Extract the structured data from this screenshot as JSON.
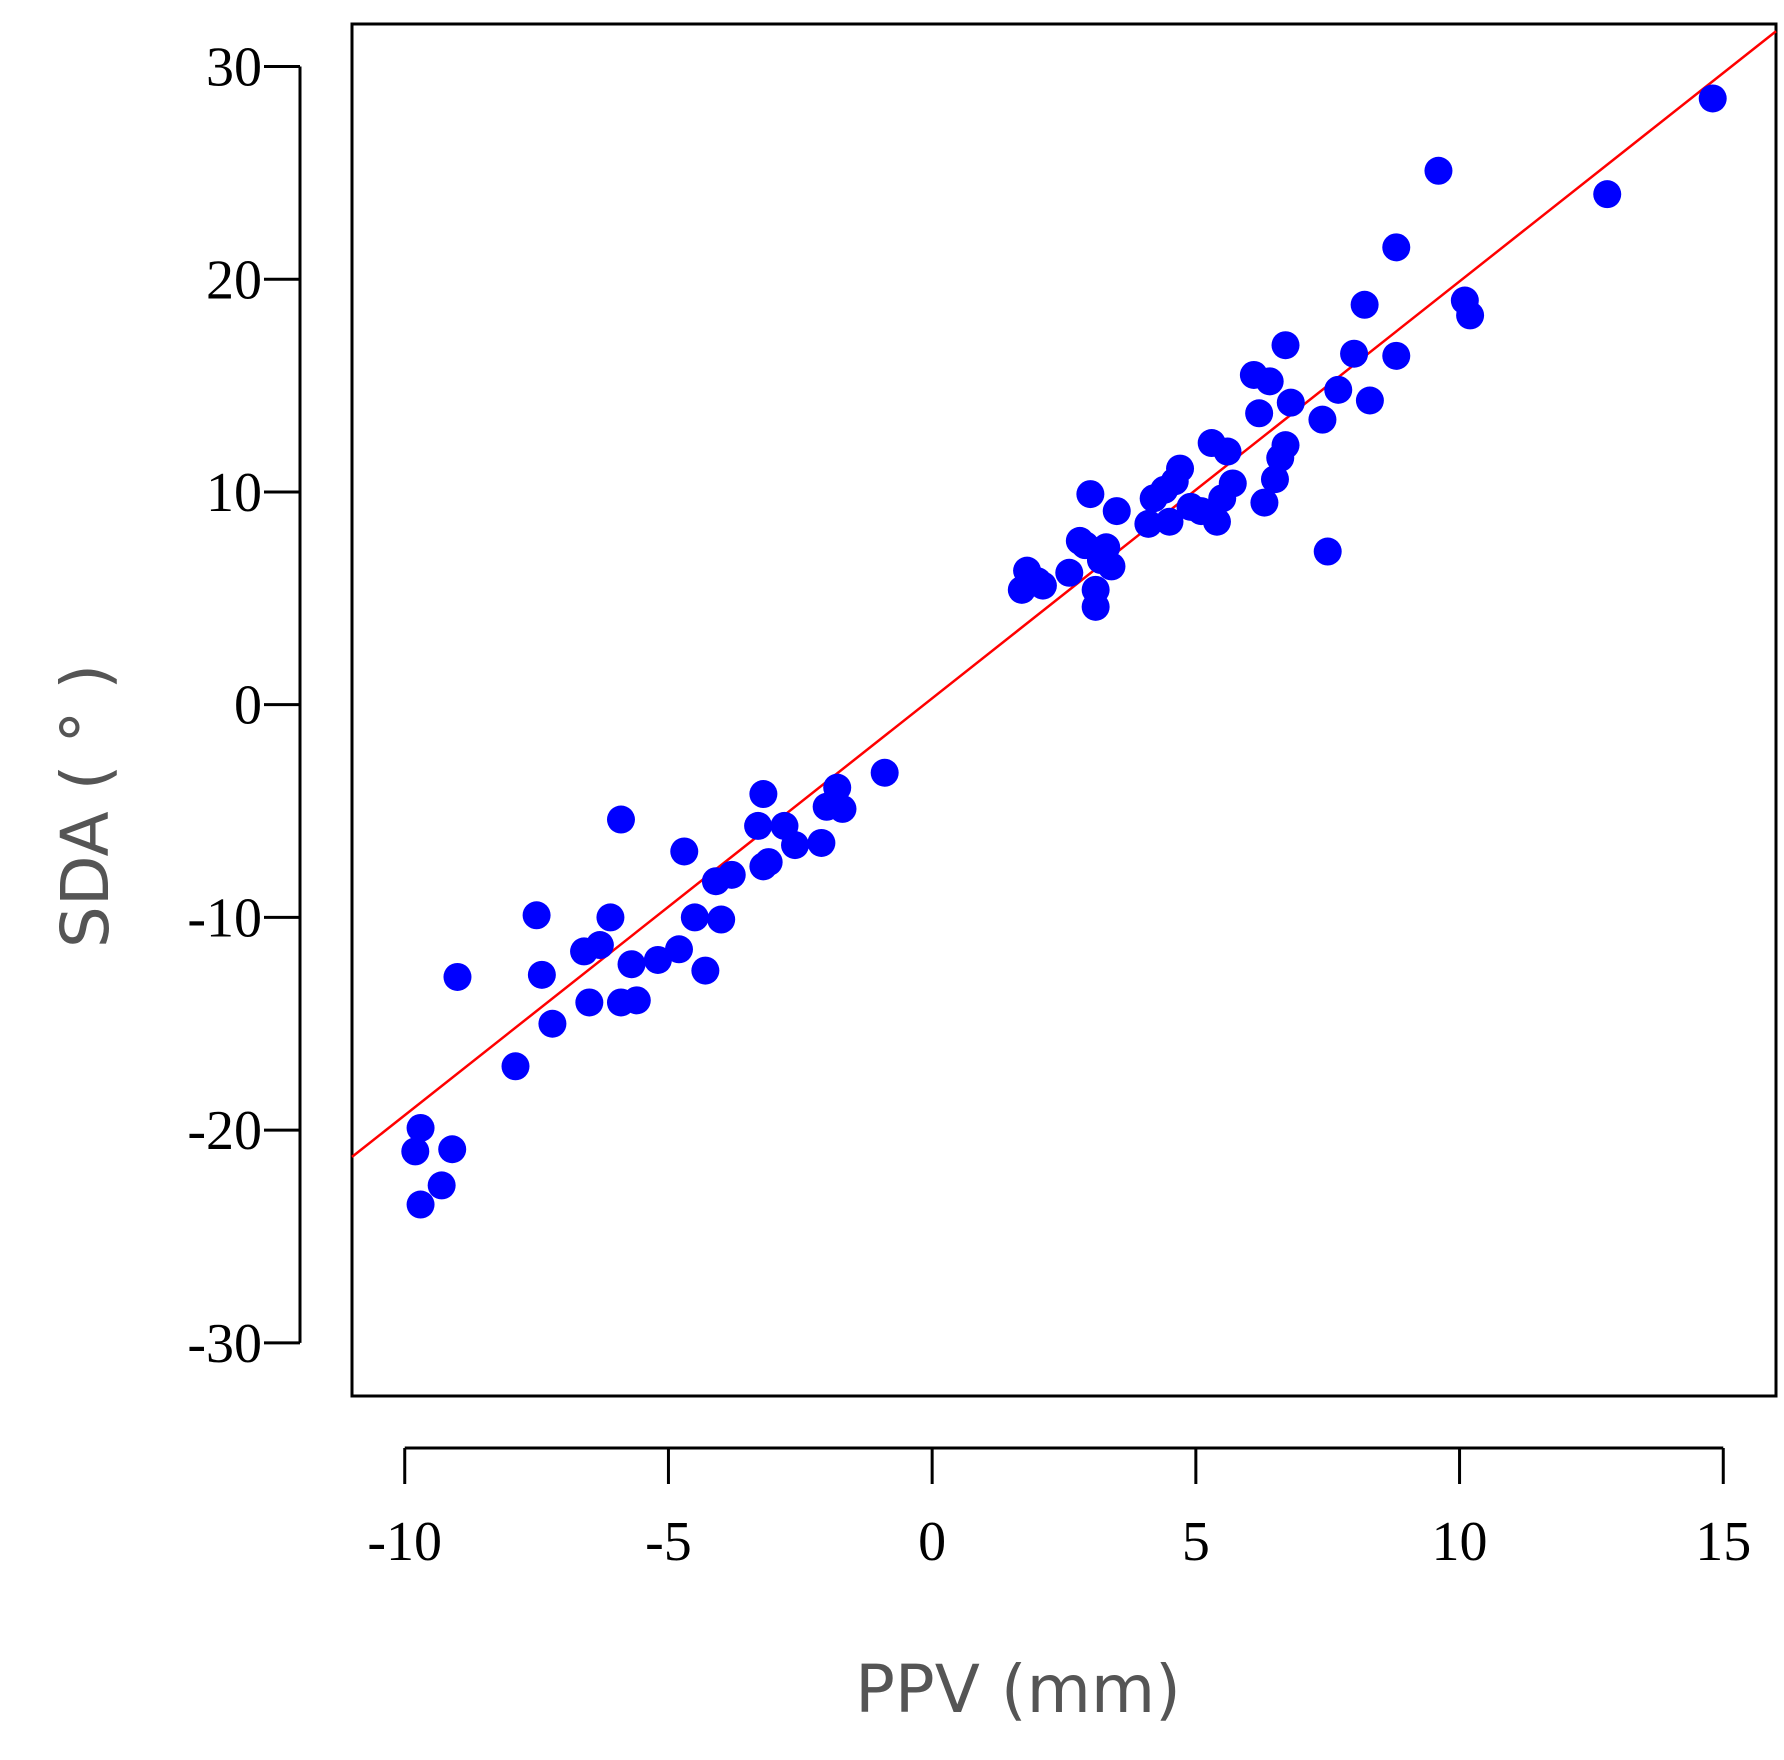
{
  "chart_data": {
    "type": "scatter",
    "title": "",
    "xlabel": "PPV (mm)",
    "ylabel": "SDA ( ° )",
    "xlim": [
      -11,
      16
    ],
    "ylim": [
      -32.5,
      32
    ],
    "xticks": [
      -10,
      -5,
      0,
      5,
      10,
      15
    ],
    "yticks": [
      -30,
      -20,
      -10,
      0,
      10,
      20,
      30
    ],
    "grid": false,
    "colors": {
      "points": "#0000ff",
      "fit_line": "#ff0000",
      "axes": "#000000"
    },
    "fit_line": {
      "slope": 1.96,
      "intercept": 0.3,
      "x_range": [
        -11,
        16
      ]
    },
    "series": [
      {
        "name": "observations",
        "points": [
          [
            -9.7,
            -19.9
          ],
          [
            -9.8,
            -21.0
          ],
          [
            -9.7,
            -23.5
          ],
          [
            -9.3,
            -22.6
          ],
          [
            -9.1,
            -20.9
          ],
          [
            -9.0,
            -12.8
          ],
          [
            -7.9,
            -17.0
          ],
          [
            -7.5,
            -9.9
          ],
          [
            -7.4,
            -12.7
          ],
          [
            -7.2,
            -15.0
          ],
          [
            -6.6,
            -11.6
          ],
          [
            -6.5,
            -14.0
          ],
          [
            -6.3,
            -11.3
          ],
          [
            -6.1,
            -10.0
          ],
          [
            -5.9,
            -5.4
          ],
          [
            -5.9,
            -14.0
          ],
          [
            -5.7,
            -12.2
          ],
          [
            -5.6,
            -13.9
          ],
          [
            -5.2,
            -12.0
          ],
          [
            -4.8,
            -11.5
          ],
          [
            -4.7,
            -6.9
          ],
          [
            -4.5,
            -10.0
          ],
          [
            -4.3,
            -12.5
          ],
          [
            -4.1,
            -8.3
          ],
          [
            -4.0,
            -10.1
          ],
          [
            -3.8,
            -8.0
          ],
          [
            -3.3,
            -5.7
          ],
          [
            -3.2,
            -4.2
          ],
          [
            -3.2,
            -7.6
          ],
          [
            -3.1,
            -7.4
          ],
          [
            -2.8,
            -5.7
          ],
          [
            -2.6,
            -6.6
          ],
          [
            -2.1,
            -6.5
          ],
          [
            -2.0,
            -4.8
          ],
          [
            -1.8,
            -3.9
          ],
          [
            -1.7,
            -4.9
          ],
          [
            -0.9,
            -3.2
          ],
          [
            1.7,
            5.4
          ],
          [
            1.8,
            6.3
          ],
          [
            2.0,
            5.8
          ],
          [
            2.1,
            5.6
          ],
          [
            2.6,
            6.2
          ],
          [
            2.8,
            7.7
          ],
          [
            2.9,
            7.5
          ],
          [
            3.0,
            9.9
          ],
          [
            3.1,
            4.6
          ],
          [
            3.1,
            5.4
          ],
          [
            3.2,
            6.8
          ],
          [
            3.3,
            7.4
          ],
          [
            3.4,
            6.5
          ],
          [
            3.5,
            9.1
          ],
          [
            4.1,
            8.5
          ],
          [
            4.2,
            9.7
          ],
          [
            4.4,
            10.1
          ],
          [
            4.5,
            8.6
          ],
          [
            4.6,
            10.5
          ],
          [
            4.7,
            11.1
          ],
          [
            4.9,
            9.3
          ],
          [
            5.1,
            9.1
          ],
          [
            5.3,
            12.3
          ],
          [
            5.4,
            8.6
          ],
          [
            5.5,
            9.7
          ],
          [
            5.6,
            11.9
          ],
          [
            5.7,
            10.4
          ],
          [
            6.1,
            15.5
          ],
          [
            6.2,
            13.7
          ],
          [
            6.3,
            9.5
          ],
          [
            6.4,
            15.2
          ],
          [
            6.5,
            10.6
          ],
          [
            6.6,
            11.6
          ],
          [
            6.7,
            16.9
          ],
          [
            6.7,
            12.2
          ],
          [
            6.8,
            14.2
          ],
          [
            7.4,
            13.4
          ],
          [
            7.5,
            7.2
          ],
          [
            7.7,
            14.8
          ],
          [
            8.0,
            16.5
          ],
          [
            8.2,
            18.8
          ],
          [
            8.3,
            14.3
          ],
          [
            8.8,
            21.5
          ],
          [
            8.8,
            16.4
          ],
          [
            9.6,
            25.1
          ],
          [
            10.1,
            19.0
          ],
          [
            10.2,
            18.3
          ],
          [
            12.8,
            24.0
          ],
          [
            14.8,
            28.5
          ]
        ]
      }
    ]
  }
}
